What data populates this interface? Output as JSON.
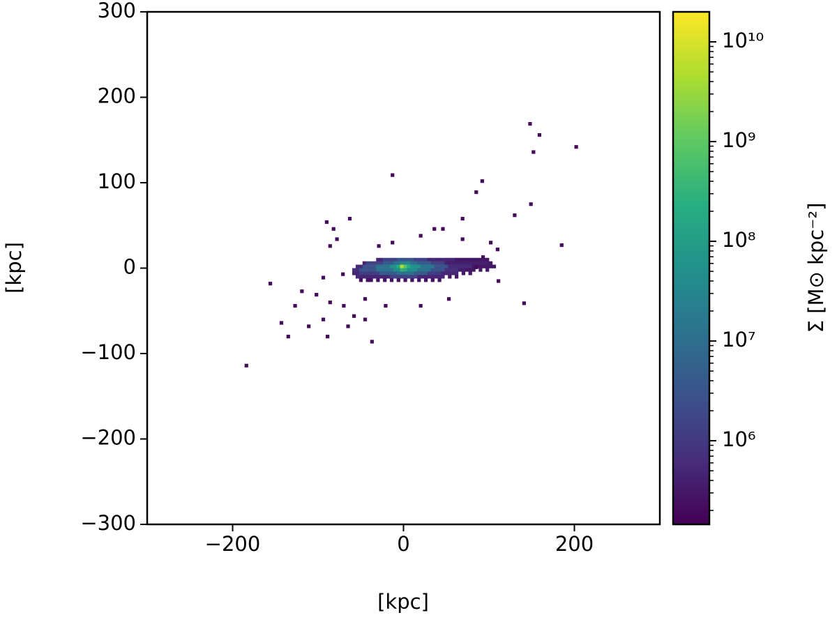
{
  "chart_data": {
    "type": "heatmap",
    "xlabel": "[kpc]",
    "ylabel": "[kpc]",
    "colorbar_label": "Σ [M⊙ kpc⁻²]",
    "colormap": "viridis",
    "color_scale": "log",
    "bin_size": 4,
    "xlim": [
      -300,
      300
    ],
    "ylim": [
      -300,
      300
    ],
    "xticks": [
      {
        "value": -200,
        "label": "−200"
      },
      0,
      200
    ],
    "yticks": [
      {
        "value": -300,
        "label": "−300"
      },
      {
        "value": -200,
        "label": "−200"
      },
      {
        "value": -100,
        "label": "−100"
      },
      0,
      100,
      200,
      300
    ],
    "clim": [
      145000,
      20000000000
    ],
    "cticks": [
      {
        "value": 1000000,
        "label": "10⁶"
      },
      {
        "value": 10000000,
        "label": "10⁷"
      },
      {
        "value": 100000000,
        "label": "10⁸"
      },
      {
        "value": 1000000000,
        "label": "10⁹"
      },
      {
        "value": 10000000000,
        "label": "10¹⁰"
      }
    ],
    "cminor_ticks": [
      200000.0,
      300000.0,
      400000.0,
      500000.0,
      600000.0,
      700000.0,
      800000.0,
      900000.0,
      2000000.0,
      3000000.0,
      4000000.0,
      5000000.0,
      6000000.0,
      7000000.0,
      8000000.0,
      9000000.0,
      20000000.0,
      30000000.0,
      40000000.0,
      50000000.0,
      60000000.0,
      70000000.0,
      80000000.0,
      90000000.0,
      200000000.0,
      300000000.0,
      400000000.0,
      500000000.0,
      600000000.0,
      700000000.0,
      800000000.0,
      900000000.0,
      2000000000.0,
      3000000000.0,
      4000000000.0,
      5000000000.0,
      6000000000.0,
      7000000000.0,
      8000000000.0,
      9000000000.0
    ],
    "cells": [
      [
        -32,
        8,
        500000.0
      ],
      [
        -28,
        8,
        500000.0
      ],
      [
        -24,
        8,
        1500000.0
      ],
      [
        -20,
        8,
        1500000.0
      ],
      [
        -16,
        8,
        1500000.0
      ],
      [
        -12,
        8,
        1500000.0
      ],
      [
        -8,
        8,
        3000000.0
      ],
      [
        -4,
        8,
        3000000.0
      ],
      [
        0,
        8,
        3000000.0
      ],
      [
        4,
        8,
        3000000.0
      ],
      [
        8,
        8,
        3000000.0
      ],
      [
        12,
        8,
        1500000.0
      ],
      [
        16,
        8,
        1500000.0
      ],
      [
        20,
        8,
        1500000.0
      ],
      [
        24,
        8,
        1500000.0
      ],
      [
        28,
        8,
        500000.0
      ],
      [
        32,
        8,
        500000.0
      ],
      [
        36,
        8,
        500000.0
      ],
      [
        40,
        8,
        500000.0
      ],
      [
        44,
        8,
        500000.0
      ],
      [
        48,
        8,
        500000.0
      ],
      [
        52,
        8,
        500000.0
      ],
      [
        56,
        8,
        500000.0
      ],
      [
        60,
        8,
        300000.0
      ],
      [
        64,
        8,
        300000.0
      ],
      [
        68,
        8,
        300000.0
      ],
      [
        72,
        8,
        300000.0
      ],
      [
        76,
        8,
        300000.0
      ],
      [
        80,
        8,
        300000.0
      ],
      [
        84,
        8,
        300000.0
      ],
      [
        88,
        8,
        300000.0
      ],
      [
        92,
        8,
        300000.0
      ],
      [
        96,
        8,
        300000.0
      ],
      [
        -48,
        4,
        400000.0
      ],
      [
        -44,
        4,
        1500000.0
      ],
      [
        -40,
        4,
        1500000.0
      ],
      [
        -36,
        4,
        1500000.0
      ],
      [
        -32,
        4,
        1500000.0
      ],
      [
        -28,
        4,
        1500000.0
      ],
      [
        -24,
        4,
        4000000.0
      ],
      [
        -20,
        4,
        4000000.0
      ],
      [
        -16,
        4,
        4000000.0
      ],
      [
        -12,
        4,
        10000000.0
      ],
      [
        -8,
        4,
        10000000.0
      ],
      [
        -4,
        4,
        30000000.0
      ],
      [
        0,
        4,
        30000000.0
      ],
      [
        4,
        4,
        30000000.0
      ],
      [
        8,
        4,
        10000000.0
      ],
      [
        12,
        4,
        10000000.0
      ],
      [
        16,
        4,
        4000000.0
      ],
      [
        20,
        4,
        4000000.0
      ],
      [
        24,
        4,
        4000000.0
      ],
      [
        28,
        4,
        4000000.0
      ],
      [
        32,
        4,
        1500000.0
      ],
      [
        36,
        4,
        1500000.0
      ],
      [
        40,
        4,
        1500000.0
      ],
      [
        44,
        4,
        1500000.0
      ],
      [
        48,
        4,
        400000.0
      ],
      [
        52,
        4,
        400000.0
      ],
      [
        56,
        4,
        400000.0
      ],
      [
        60,
        4,
        400000.0
      ],
      [
        64,
        4,
        400000.0
      ],
      [
        68,
        4,
        400000.0
      ],
      [
        72,
        4,
        400000.0
      ],
      [
        76,
        4,
        400000.0
      ],
      [
        80,
        4,
        400000.0
      ],
      [
        84,
        4,
        400000.0
      ],
      [
        88,
        4,
        400000.0
      ],
      [
        92,
        4,
        400000.0
      ],
      [
        96,
        4,
        400000.0
      ],
      [
        100,
        4,
        300000.0
      ],
      [
        -56,
        0,
        600000.0
      ],
      [
        -52,
        0,
        600000.0
      ],
      [
        -48,
        0,
        3000000.0
      ],
      [
        -44,
        0,
        3000000.0
      ],
      [
        -40,
        0,
        3000000.0
      ],
      [
        -36,
        0,
        3000000.0
      ],
      [
        -32,
        0,
        15000000.0
      ],
      [
        -28,
        0,
        15000000.0
      ],
      [
        -24,
        0,
        15000000.0
      ],
      [
        -20,
        0,
        15000000.0
      ],
      [
        -16,
        0,
        60000000.0
      ],
      [
        -12,
        0,
        60000000.0
      ],
      [
        -8,
        0,
        200000000.0
      ],
      [
        -4,
        0,
        5000000000.0
      ],
      [
        0,
        0,
        800000000.0
      ],
      [
        4,
        0,
        200000000.0
      ],
      [
        8,
        0,
        60000000.0
      ],
      [
        12,
        0,
        60000000.0
      ],
      [
        16,
        0,
        60000000.0
      ],
      [
        20,
        0,
        15000000.0
      ],
      [
        24,
        0,
        15000000.0
      ],
      [
        28,
        0,
        15000000.0
      ],
      [
        32,
        0,
        15000000.0
      ],
      [
        36,
        0,
        3000000.0
      ],
      [
        40,
        0,
        3000000.0
      ],
      [
        44,
        0,
        3000000.0
      ],
      [
        48,
        0,
        3000000.0
      ],
      [
        52,
        0,
        600000.0
      ],
      [
        56,
        0,
        600000.0
      ],
      [
        60,
        0,
        600000.0
      ],
      [
        64,
        0,
        600000.0
      ],
      [
        68,
        0,
        600000.0
      ],
      [
        72,
        0,
        600000.0
      ],
      [
        76,
        0,
        600000.0
      ],
      [
        80,
        0,
        300000.0
      ],
      [
        84,
        0,
        300000.0
      ],
      [
        88,
        0,
        300000.0
      ],
      [
        92,
        0,
        300000.0
      ],
      [
        96,
        0,
        300000.0
      ],
      [
        100,
        0,
        300000.0
      ],
      [
        104,
        0,
        300000.0
      ],
      [
        -60,
        -4,
        700000.0
      ],
      [
        -56,
        -4,
        700000.0
      ],
      [
        -52,
        -4,
        3000000.0
      ],
      [
        -48,
        -4,
        3000000.0
      ],
      [
        -44,
        -4,
        3000000.0
      ],
      [
        -40,
        -4,
        3000000.0
      ],
      [
        -36,
        -4,
        3000000.0
      ],
      [
        -32,
        -4,
        12000000.0
      ],
      [
        -28,
        -4,
        12000000.0
      ],
      [
        -24,
        -4,
        12000000.0
      ],
      [
        -20,
        -4,
        12000000.0
      ],
      [
        -16,
        -4,
        12000000.0
      ],
      [
        -12,
        -4,
        50000000.0
      ],
      [
        -8,
        -4,
        50000000.0
      ],
      [
        -4,
        -4,
        300000000.0
      ],
      [
        0,
        -4,
        200000000.0
      ],
      [
        4,
        -4,
        50000000.0
      ],
      [
        8,
        -4,
        50000000.0
      ],
      [
        12,
        -4,
        50000000.0
      ],
      [
        16,
        -4,
        12000000.0
      ],
      [
        20,
        -4,
        12000000.0
      ],
      [
        24,
        -4,
        12000000.0
      ],
      [
        28,
        -4,
        12000000.0
      ],
      [
        32,
        -4,
        3000000.0
      ],
      [
        36,
        -4,
        3000000.0
      ],
      [
        40,
        -4,
        3000000.0
      ],
      [
        44,
        -4,
        3000000.0
      ],
      [
        48,
        -4,
        700000.0
      ],
      [
        52,
        -4,
        700000.0
      ],
      [
        56,
        -4,
        700000.0
      ],
      [
        60,
        -4,
        700000.0
      ],
      [
        64,
        -4,
        400000.0
      ],
      [
        68,
        -4,
        400000.0
      ],
      [
        72,
        -4,
        300000.0
      ],
      [
        76,
        -4,
        300000.0
      ],
      [
        80,
        -4,
        300000.0
      ],
      [
        88,
        -4,
        300000.0
      ],
      [
        96,
        -4,
        300000.0
      ],
      [
        -60,
        -8,
        500000.0
      ],
      [
        -56,
        -8,
        500000.0
      ],
      [
        -52,
        -8,
        1200000.0
      ],
      [
        -48,
        -8,
        1200000.0
      ],
      [
        -44,
        -8,
        1200000.0
      ],
      [
        -40,
        -8,
        1200000.0
      ],
      [
        -36,
        -8,
        1200000.0
      ],
      [
        -32,
        -8,
        1200000.0
      ],
      [
        -28,
        -8,
        4000000.0
      ],
      [
        -24,
        -8,
        4000000.0
      ],
      [
        -20,
        -8,
        4000000.0
      ],
      [
        -16,
        -8,
        4000000.0
      ],
      [
        -12,
        -8,
        4000000.0
      ],
      [
        -8,
        -8,
        10000000.0
      ],
      [
        -4,
        -8,
        10000000.0
      ],
      [
        0,
        -8,
        10000000.0
      ],
      [
        4,
        -8,
        10000000.0
      ],
      [
        8,
        -8,
        10000000.0
      ],
      [
        12,
        -8,
        4000000.0
      ],
      [
        16,
        -8,
        4000000.0
      ],
      [
        20,
        -8,
        4000000.0
      ],
      [
        24,
        -8,
        4000000.0
      ],
      [
        28,
        -8,
        1200000.0
      ],
      [
        32,
        -8,
        1200000.0
      ],
      [
        36,
        -8,
        1200000.0
      ],
      [
        40,
        -8,
        1200000.0
      ],
      [
        44,
        -8,
        500000.0
      ],
      [
        48,
        -8,
        500000.0
      ],
      [
        52,
        -8,
        500000.0
      ],
      [
        56,
        -8,
        500000.0
      ],
      [
        60,
        -8,
        500000.0
      ],
      [
        68,
        -8,
        300000.0
      ],
      [
        76,
        -8,
        300000.0
      ],
      [
        -56,
        -12,
        500000.0
      ],
      [
        -52,
        -12,
        500000.0
      ],
      [
        -48,
        -12,
        500000.0
      ],
      [
        -44,
        -12,
        500000.0
      ],
      [
        -40,
        -12,
        500000.0
      ],
      [
        -36,
        -12,
        500000.0
      ],
      [
        -32,
        -12,
        500000.0
      ],
      [
        -28,
        -12,
        500000.0
      ],
      [
        -24,
        -12,
        500000.0
      ],
      [
        -20,
        -12,
        500000.0
      ],
      [
        -16,
        -12,
        1500000.0
      ],
      [
        -12,
        -12,
        1500000.0
      ],
      [
        -8,
        -12,
        1500000.0
      ],
      [
        -4,
        -12,
        1500000.0
      ],
      [
        0,
        -12,
        1500000.0
      ],
      [
        4,
        -12,
        1500000.0
      ],
      [
        8,
        -12,
        1500000.0
      ],
      [
        12,
        -12,
        1500000.0
      ],
      [
        16,
        -12,
        500000.0
      ],
      [
        20,
        -12,
        500000.0
      ],
      [
        24,
        -12,
        500000.0
      ],
      [
        28,
        -12,
        500000.0
      ],
      [
        32,
        -12,
        500000.0
      ],
      [
        36,
        -12,
        500000.0
      ],
      [
        40,
        -12,
        500000.0
      ],
      [
        44,
        -12,
        500000.0
      ],
      [
        52,
        -12,
        300000.0
      ],
      [
        60,
        -12,
        300000.0
      ],
      [
        -52,
        -16,
        250000.0
      ],
      [
        -44,
        -16,
        250000.0
      ],
      [
        -40,
        -16,
        250000.0
      ],
      [
        -32,
        -16,
        250000.0
      ],
      [
        -24,
        -16,
        250000.0
      ],
      [
        -16,
        -16,
        250000.0
      ],
      [
        -8,
        -16,
        250000.0
      ],
      [
        0,
        -16,
        250000.0
      ],
      [
        8,
        -16,
        250000.0
      ],
      [
        16,
        -16,
        250000.0
      ],
      [
        24,
        -16,
        250000.0
      ],
      [
        32,
        -16,
        250000.0
      ],
      [
        40,
        -16,
        250000.0
      ],
      [
        -186,
        -116,
        200000.0
      ],
      [
        146,
        167,
        200000.0
      ],
      [
        157,
        154,
        200000.0
      ],
      [
        150,
        134,
        200000.0
      ],
      [
        200,
        140,
        200000.0
      ],
      [
        147,
        73,
        200000.0
      ],
      [
        128,
        60,
        200000.0
      ],
      [
        183,
        25,
        200000.0
      ],
      [
        139,
        -43,
        200000.0
      ],
      [
        -15,
        107,
        200000.0
      ],
      [
        90,
        100,
        200000.0
      ],
      [
        83,
        87,
        200000.0
      ],
      [
        67,
        56,
        200000.0
      ],
      [
        44,
        44,
        200000.0
      ],
      [
        -158,
        -20,
        200000.0
      ],
      [
        -145,
        -66,
        200000.0
      ],
      [
        -137,
        -82,
        200000.0
      ],
      [
        -129,
        -46,
        200000.0
      ],
      [
        -121,
        -29,
        200000.0
      ],
      [
        -104,
        -33,
        200000.0
      ],
      [
        -96,
        -13,
        200000.0
      ],
      [
        -92,
        52,
        200000.0
      ],
      [
        -84,
        44,
        200000.0
      ],
      [
        -80,
        32,
        200000.0
      ],
      [
        -88,
        24,
        200000.0
      ],
      [
        -65,
        56,
        200000.0
      ],
      [
        -73,
        -9,
        200000.0
      ],
      [
        -88,
        -42,
        200000.0
      ],
      [
        -72,
        -46,
        200000.0
      ],
      [
        -60,
        -58,
        200000.0
      ],
      [
        -47,
        -62,
        200000.0
      ],
      [
        -96,
        -62,
        200000.0
      ],
      [
        -91,
        -82,
        200000.0
      ],
      [
        -39,
        -88,
        200000.0
      ],
      [
        -67,
        -70,
        200000.0
      ],
      [
        -47,
        -38,
        200000.0
      ],
      [
        -23,
        -46,
        200000.0
      ],
      [
        18,
        -46,
        200000.0
      ],
      [
        51,
        -38,
        200000.0
      ],
      [
        109,
        -17,
        200000.0
      ],
      [
        83,
        -1,
        200000.0
      ],
      [
        18,
        36,
        200000.0
      ],
      [
        -15,
        28,
        200000.0
      ],
      [
        -31,
        24,
        200000.0
      ],
      [
        34,
        44,
        200000.0
      ],
      [
        67,
        32,
        200000.0
      ],
      [
        100,
        28,
        200000.0
      ],
      [
        108,
        20,
        200000.0
      ],
      [
        91,
        11,
        200000.0
      ],
      [
        -113,
        -70,
        200000.0
      ]
    ]
  }
}
